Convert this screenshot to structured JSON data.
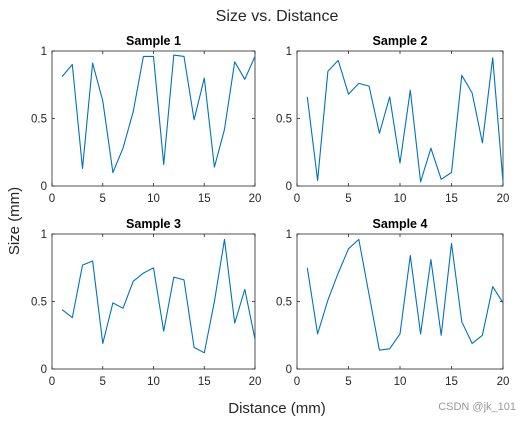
{
  "figure": {
    "title": "Size vs. Distance",
    "xlabel": "Distance (mm)",
    "ylabel": "Size (mm)",
    "watermark": "CSDN @jk_101"
  },
  "colors": {
    "line": "#0072BD",
    "axis": "#262626"
  },
  "chart_data": [
    {
      "type": "line",
      "title": "Sample 1",
      "xlim": [
        0,
        20
      ],
      "ylim": [
        0,
        1
      ],
      "xticks": [
        0,
        5,
        10,
        15,
        20
      ],
      "yticks": [
        0,
        0.5,
        1
      ],
      "x": [
        1,
        2,
        3,
        4,
        5,
        6,
        7,
        8,
        9,
        10,
        11,
        12,
        13,
        14,
        15,
        16,
        17,
        18,
        19,
        20
      ],
      "values": [
        0.81,
        0.9,
        0.13,
        0.91,
        0.63,
        0.1,
        0.28,
        0.55,
        0.96,
        0.96,
        0.16,
        0.97,
        0.96,
        0.49,
        0.8,
        0.14,
        0.42,
        0.92,
        0.79,
        0.96
      ]
    },
    {
      "type": "line",
      "title": "Sample 2",
      "xlim": [
        0,
        20
      ],
      "ylim": [
        0,
        1
      ],
      "xticks": [
        0,
        5,
        10,
        15,
        20
      ],
      "yticks": [
        0,
        0.5,
        1
      ],
      "x": [
        1,
        2,
        3,
        4,
        5,
        6,
        7,
        8,
        9,
        10,
        11,
        12,
        13,
        14,
        15,
        16,
        17,
        18,
        19,
        20
      ],
      "values": [
        0.66,
        0.04,
        0.85,
        0.93,
        0.68,
        0.76,
        0.74,
        0.39,
        0.66,
        0.17,
        0.71,
        0.03,
        0.28,
        0.05,
        0.1,
        0.82,
        0.69,
        0.32,
        0.95,
        0.03
      ]
    },
    {
      "type": "line",
      "title": "Sample 3",
      "xlim": [
        0,
        20
      ],
      "ylim": [
        0,
        1
      ],
      "xticks": [
        0,
        5,
        10,
        15,
        20
      ],
      "yticks": [
        0,
        0.5,
        1
      ],
      "x": [
        1,
        2,
        3,
        4,
        5,
        6,
        7,
        8,
        9,
        10,
        11,
        12,
        13,
        14,
        15,
        16,
        17,
        18,
        19,
        20
      ],
      "values": [
        0.44,
        0.38,
        0.77,
        0.8,
        0.19,
        0.49,
        0.45,
        0.65,
        0.71,
        0.75,
        0.28,
        0.68,
        0.66,
        0.16,
        0.12,
        0.5,
        0.96,
        0.34,
        0.59,
        0.22
      ]
    },
    {
      "type": "line",
      "title": "Sample 4",
      "xlim": [
        0,
        20
      ],
      "ylim": [
        0,
        1
      ],
      "xticks": [
        0,
        5,
        10,
        15,
        20
      ],
      "yticks": [
        0,
        0.5,
        1
      ],
      "x": [
        1,
        2,
        3,
        4,
        5,
        6,
        7,
        8,
        9,
        10,
        11,
        12,
        13,
        14,
        15,
        16,
        17,
        18,
        19,
        20
      ],
      "values": [
        0.75,
        0.26,
        0.51,
        0.71,
        0.89,
        0.96,
        0.55,
        0.14,
        0.15,
        0.26,
        0.84,
        0.26,
        0.81,
        0.25,
        0.93,
        0.35,
        0.19,
        0.25,
        0.61,
        0.49
      ]
    }
  ]
}
